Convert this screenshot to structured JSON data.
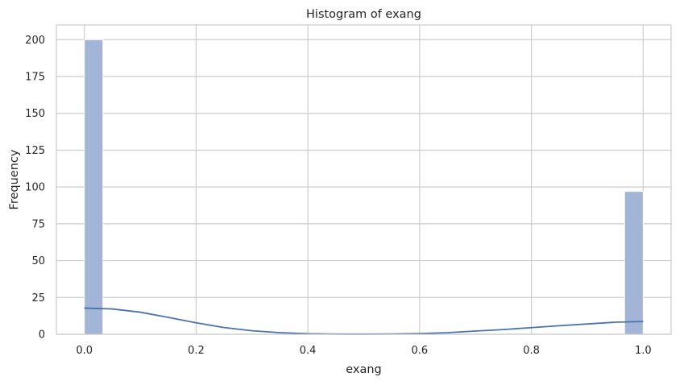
{
  "chart_data": {
    "type": "bar",
    "subtype": "histogram with kde",
    "title": "Histogram of exang",
    "xlabel": "exang",
    "ylabel": "Frequency",
    "xlim": [
      -0.05,
      1.05
    ],
    "ylim": [
      0,
      210
    ],
    "xticks": [
      0.0,
      0.2,
      0.4,
      0.6,
      0.8,
      1.0
    ],
    "xtick_labels": [
      "0.0",
      "0.2",
      "0.4",
      "0.6",
      "0.8",
      "1.0"
    ],
    "yticks": [
      0,
      25,
      50,
      75,
      100,
      125,
      150,
      175,
      200
    ],
    "yticks_labels": [
      "0",
      "25",
      "50",
      "75",
      "100",
      "125",
      "150",
      "175",
      "200"
    ],
    "grid": true,
    "bin_count": 30,
    "bins": [
      {
        "x0": 0.0,
        "x1": 0.0333,
        "count": 200
      },
      {
        "x0": 0.9667,
        "x1": 1.0,
        "count": 97
      }
    ],
    "kde": {
      "x": [
        0.0,
        0.05,
        0.1,
        0.15,
        0.2,
        0.25,
        0.3,
        0.35,
        0.4,
        0.45,
        0.5,
        0.55,
        0.6,
        0.65,
        0.7,
        0.75,
        0.8,
        0.85,
        0.9,
        0.95,
        1.0
      ],
      "y": [
        17.8,
        17.2,
        15.0,
        11.5,
        7.8,
        4.6,
        2.4,
        1.1,
        0.4,
        0.15,
        0.1,
        0.2,
        0.5,
        1.1,
        2.2,
        3.2,
        4.5,
        5.8,
        7.0,
        8.2,
        8.7
      ]
    },
    "colors": {
      "bar_fill": "#a3b5d7",
      "bar_edge": "#ffffff",
      "kde_line": "#4c72b0",
      "grid": "#cccccc",
      "spine": "#cccccc",
      "text": "#262626"
    }
  }
}
